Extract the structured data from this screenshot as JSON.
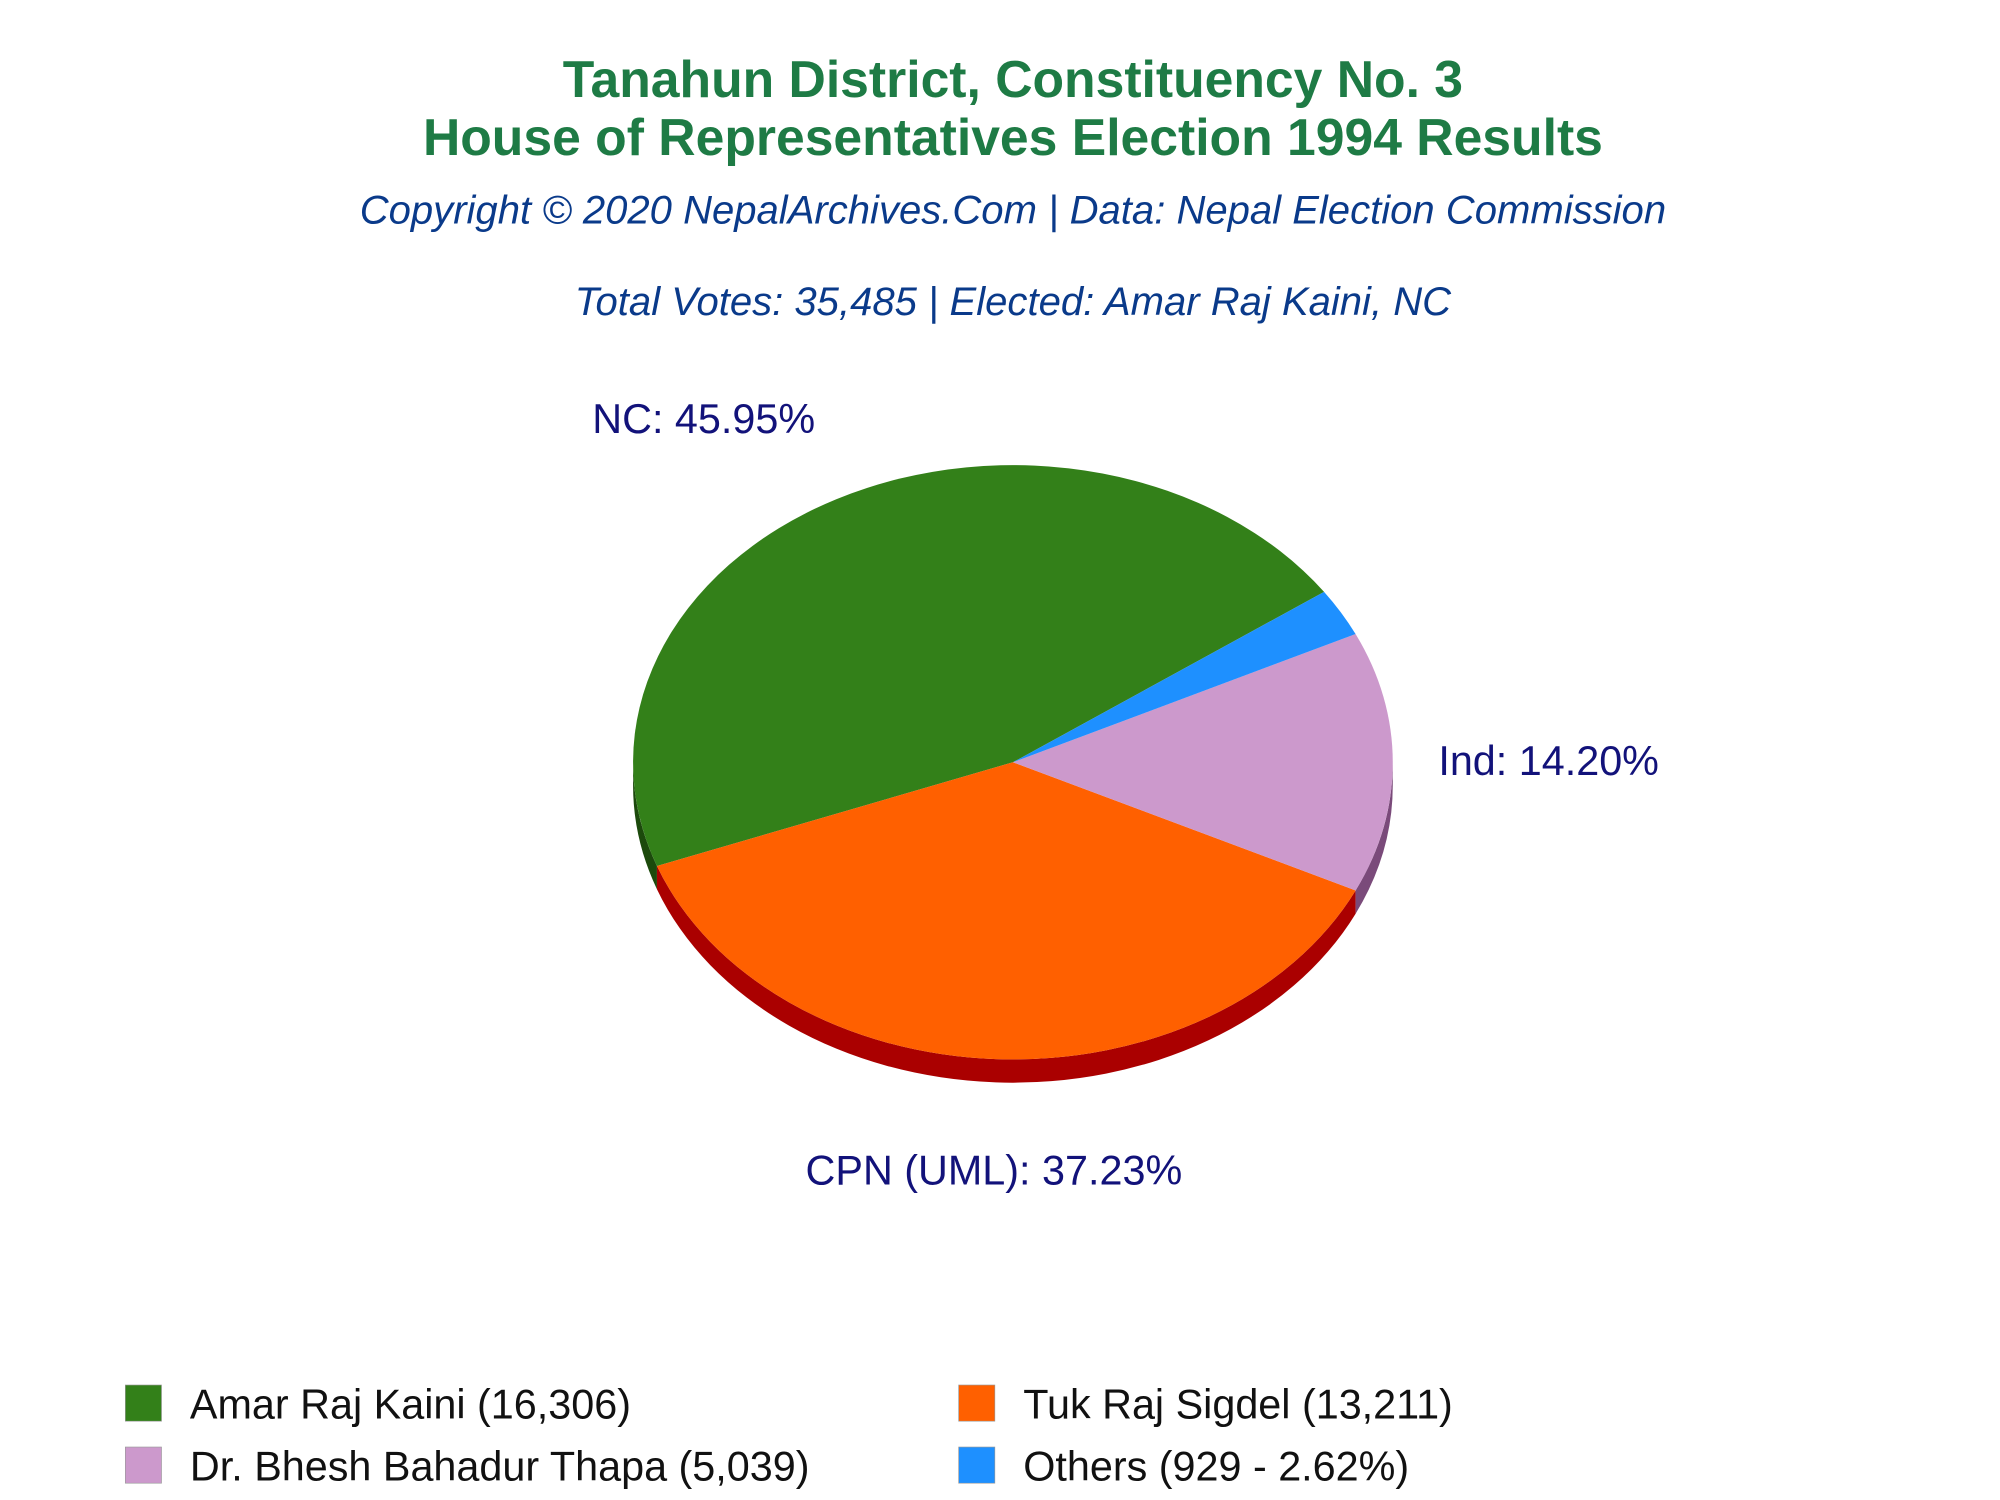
{
  "chart_data": {
    "type": "pie",
    "title": [
      "Tanahun District, Constituency No. 3",
      "House of Representatives Election 1994 Results"
    ],
    "subtitle": "Copyright © 2020 NepalArchives.Com | Data: Nepal Election Commission",
    "annotation": "Total Votes: 35,485 | Elected: Amar Raj Kaini, NC",
    "categories": [
      "Amar Raj Kaini (16,306)",
      "Tuk Raj Sigdel (13,211)",
      "Dr. Bhesh Bahadur Thapa (5,039)",
      "Others (929 - 2.62%)"
    ],
    "values": [
      45.95,
      37.23,
      14.2,
      2.62
    ],
    "value_labels": [
      "NC: 45.95%",
      "CPN (UML): 37.23%",
      "Ind: 14.20%",
      null
    ],
    "colors": [
      "#338019",
      "#ff6000",
      "#cc99cc",
      "#1e90ff"
    ],
    "side_colors": [
      "#1c4a0c",
      "#aa0000",
      "#7a4a7a",
      "#0f4c8a"
    ],
    "legend": "bottom"
  }
}
